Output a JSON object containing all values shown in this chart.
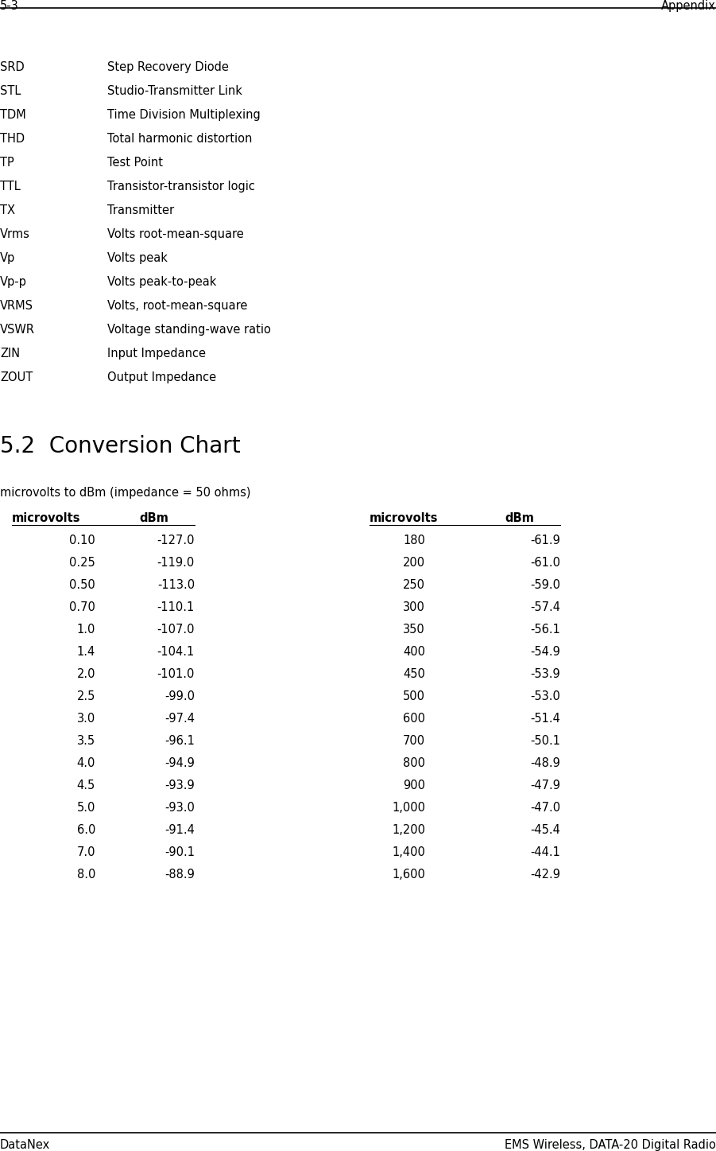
{
  "header_left": "5-3",
  "header_right": "Appendix",
  "footer_left": "DataNex",
  "footer_right": "EMS Wireless, DATA-20 Digital Radio",
  "abbreviations": [
    [
      "SRD",
      "Step Recovery Diode"
    ],
    [
      "STL",
      "Studio-Transmitter Link"
    ],
    [
      "TDM",
      "Time Division Multiplexing"
    ],
    [
      "THD",
      "Total harmonic distortion"
    ],
    [
      "TP",
      "Test Point"
    ],
    [
      "TTL",
      "Transistor-transistor logic"
    ],
    [
      "TX",
      "Transmitter"
    ],
    [
      "Vrms",
      "Volts root-mean-square"
    ],
    [
      "Vp",
      "Volts peak"
    ],
    [
      "Vp-p",
      "Volts peak-to-peak"
    ],
    [
      "VRMS",
      "Volts, root-mean-square"
    ],
    [
      "VSWR",
      "Voltage standing-wave ratio"
    ],
    [
      "ZIN",
      "Input Impedance"
    ],
    [
      "ZOUT",
      "Output Impedance"
    ]
  ],
  "section_title": "5.2  Conversion Chart",
  "chart_subtitle": "microvolts to dBm (impedance = 50 ohms)",
  "col_headers": [
    "microvolts",
    "dBm",
    "microvolts",
    "dBm"
  ],
  "table_data_left": [
    [
      "0.10",
      "-127.0"
    ],
    [
      "0.25",
      "-119.0"
    ],
    [
      "0.50",
      "-113.0"
    ],
    [
      "0.70",
      "-110.1"
    ],
    [
      "1.0",
      "-107.0"
    ],
    [
      "1.4",
      "-104.1"
    ],
    [
      "2.0",
      "-101.0"
    ],
    [
      "2.5",
      "-99.0"
    ],
    [
      "3.0",
      "-97.4"
    ],
    [
      "3.5",
      "-96.1"
    ],
    [
      "4.0",
      "-94.9"
    ],
    [
      "4.5",
      "-93.9"
    ],
    [
      "5.0",
      "-93.0"
    ],
    [
      "6.0",
      "-91.4"
    ],
    [
      "7.0",
      "-90.1"
    ],
    [
      "8.0",
      "-88.9"
    ]
  ],
  "table_data_right": [
    [
      "180",
      "-61.9"
    ],
    [
      "200",
      "-61.0"
    ],
    [
      "250",
      "-59.0"
    ],
    [
      "300",
      "-57.4"
    ],
    [
      "350",
      "-56.1"
    ],
    [
      "400",
      "-54.9"
    ],
    [
      "450",
      "-53.9"
    ],
    [
      "500",
      "-53.0"
    ],
    [
      "600",
      "-51.4"
    ],
    [
      "700",
      "-50.1"
    ],
    [
      "800",
      "-48.9"
    ],
    [
      "900",
      "-47.9"
    ],
    [
      "1,000",
      "-47.0"
    ],
    [
      "1,200",
      "-45.4"
    ],
    [
      "1,400",
      "-44.1"
    ],
    [
      "1,600",
      "-42.9"
    ]
  ],
  "bg_color": "#ffffff",
  "text_color": "#000000",
  "font_family": "DejaVu Sans",
  "abbrev_fontsize": 10.5,
  "header_fontsize": 10.5,
  "section_title_fontsize": 20,
  "subtitle_fontsize": 10.5,
  "table_header_fontsize": 10.5,
  "table_data_fontsize": 10.5
}
